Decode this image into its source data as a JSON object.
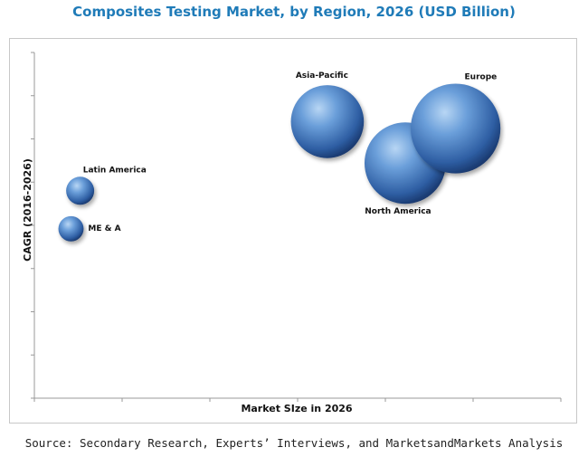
{
  "chart_data": {
    "type": "bubble",
    "title": "Composites Testing Market, by Region, 2026 (USD Billion)",
    "xlabel": "Market SIze in 2026",
    "ylabel": "CAGR (2016-2026)",
    "grid": false,
    "tick_labels_shown": false,
    "series": [
      {
        "name": "Latin America",
        "x": 1.0,
        "y": 6.0,
        "size": 1.0,
        "label_pos": "above-right"
      },
      {
        "name": "ME & A",
        "x": 0.8,
        "y": 4.9,
        "size": 0.9,
        "label_pos": "right"
      },
      {
        "name": "Asia-Pacific",
        "x": 6.4,
        "y": 8.0,
        "size": 2.6,
        "label_pos": "above"
      },
      {
        "name": "North America",
        "x": 8.1,
        "y": 6.8,
        "size": 2.9,
        "label_pos": "below"
      },
      {
        "name": "Europe",
        "x": 9.2,
        "y": 7.8,
        "size": 3.2,
        "label_pos": "above-right"
      }
    ],
    "xlim": [
      0,
      11.5
    ],
    "ylim": [
      0,
      10
    ]
  },
  "source": "Source: Secondary Research, Experts’ Interviews, and MarketsandMarkets Analysis",
  "colors": {
    "title": "#1f7bb8",
    "bubble_light": "#9cc3ec",
    "bubble_mid": "#4a7fc0",
    "bubble_dark": "#1c3f78",
    "axis": "#999999"
  }
}
